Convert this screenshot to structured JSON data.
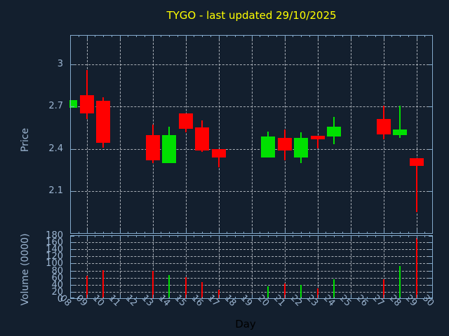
{
  "title": "TYGO - last updated 29/10/2025",
  "colors": {
    "background": "#131f2e",
    "axis": "#84aacc",
    "tick_label": "#9bb4d0",
    "grid": "#c2c8ce",
    "title": "#ffff00",
    "up": "#00e000",
    "down": "#ff0000",
    "xlabel": "#000000"
  },
  "chart_data": {
    "type": "candlestick-with-volume",
    "title": "TYGO - last updated 29/10/2025",
    "xlabel": "Day",
    "grid": true,
    "x_axis": {
      "range": [
        8,
        30
      ],
      "tick_labels": [
        "08",
        "09",
        "10",
        "11",
        "12",
        "13",
        "14",
        "15",
        "16",
        "17",
        "18",
        "19",
        "20",
        "21",
        "22",
        "23",
        "24",
        "25",
        "26",
        "27",
        "28",
        "29",
        "30"
      ],
      "gridline_days": [
        9,
        11,
        13,
        15,
        17,
        19,
        21,
        23,
        25,
        27,
        29
      ]
    },
    "price_axis": {
      "label": "Price",
      "range": [
        1.797,
        3.209
      ],
      "ticks": [
        3.0,
        2.7,
        2.4,
        2.1
      ],
      "tick_labels": [
        "3",
        "2.7",
        "2.4",
        "2.1"
      ]
    },
    "volume_axis": {
      "label": "Volume (0000)",
      "range": [
        0,
        180
      ],
      "ticks": [
        180,
        160,
        140,
        120,
        100,
        80,
        60,
        40,
        20,
        0
      ],
      "tick_labels": [
        "180",
        "160",
        "140",
        "120",
        "100",
        "80",
        "60",
        "40",
        "20",
        "0"
      ]
    },
    "candles": [
      {
        "day": "08",
        "open": 2.69,
        "high": 2.745,
        "low": 2.69,
        "close": 2.745,
        "volume": 0
      },
      {
        "day": "09",
        "open": 2.78,
        "high": 2.96,
        "low": 2.61,
        "close": 2.65,
        "volume": 65
      },
      {
        "day": "10",
        "open": 2.74,
        "high": 2.765,
        "low": 2.405,
        "close": 2.44,
        "volume": 81
      },
      {
        "day": "13",
        "open": 2.5,
        "high": 2.575,
        "low": 2.3,
        "close": 2.32,
        "volume": 79
      },
      {
        "day": "14",
        "open": 2.3,
        "high": 2.56,
        "low": 2.3,
        "close": 2.5,
        "volume": 67
      },
      {
        "day": "15",
        "open": 2.65,
        "high": 2.65,
        "low": 2.515,
        "close": 2.54,
        "volume": 61
      },
      {
        "day": "16",
        "open": 2.555,
        "high": 2.6,
        "low": 2.375,
        "close": 2.39,
        "volume": 48
      },
      {
        "day": "17",
        "open": 2.4,
        "high": 2.4,
        "low": 2.27,
        "close": 2.34,
        "volume": 25
      },
      {
        "day": "20",
        "open": 2.34,
        "high": 2.525,
        "low": 2.34,
        "close": 2.49,
        "volume": 35
      },
      {
        "day": "21",
        "open": 2.48,
        "high": 2.54,
        "low": 2.32,
        "close": 2.39,
        "volume": 43
      },
      {
        "day": "22",
        "open": 2.34,
        "high": 2.52,
        "low": 2.3,
        "close": 2.48,
        "volume": 39
      },
      {
        "day": "23",
        "open": 2.495,
        "high": 2.495,
        "low": 2.405,
        "close": 2.47,
        "volume": 29
      },
      {
        "day": "24",
        "open": 2.49,
        "high": 2.625,
        "low": 2.43,
        "close": 2.56,
        "volume": 55
      },
      {
        "day": "27",
        "open": 2.61,
        "high": 2.705,
        "low": 2.465,
        "close": 2.5,
        "volume": 55
      },
      {
        "day": "28",
        "open": 2.5,
        "high": 2.705,
        "low": 2.475,
        "close": 2.54,
        "volume": 93
      },
      {
        "day": "29",
        "open": 2.335,
        "high": 2.335,
        "low": 1.95,
        "close": 2.28,
        "volume": 173
      }
    ]
  }
}
